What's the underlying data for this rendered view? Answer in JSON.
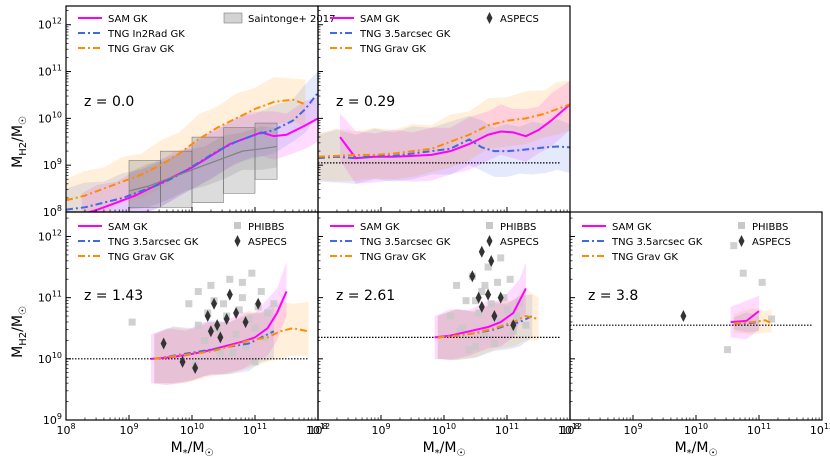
{
  "figure": {
    "ylabel": "M_H2/M_☉",
    "xlabel": "M_*/M_☉",
    "colors": {
      "sam": "#ff00ff",
      "tng_blue": "#4169e1",
      "tng_orange": "#ff8c00",
      "obs_line": "#808080",
      "phibbs": "#c8c8c8",
      "aspecs": "#333333"
    }
  },
  "chart_data": [
    {
      "type": "line",
      "panel": "z0",
      "title": "z = 0.0",
      "xlim": [
        8,
        12
      ],
      "ylim": [
        8,
        12.4
      ],
      "log_axes": true,
      "x_ticks": [
        "10^8",
        "10^9",
        "10^10",
        "10^11",
        "10^12"
      ],
      "y_ticks": [
        "10^8",
        "10^9",
        "10^10",
        "10^11",
        "10^12"
      ],
      "legend": [
        "SAM GK",
        "TNG In2Rad GK",
        "TNG Grav GK",
        "Saintonge+ 2017"
      ],
      "series": [
        {
          "name": "SAM GK",
          "style": "solid",
          "color": "#ff00ff",
          "band": 0.45,
          "x": [
            8.25,
            8.5,
            8.8,
            9.1,
            9.4,
            9.7,
            10.0,
            10.3,
            10.6,
            10.9,
            11.1,
            11.3,
            11.5,
            11.8,
            12.0
          ],
          "y": [
            7.95,
            8.05,
            8.2,
            8.35,
            8.55,
            8.75,
            8.95,
            9.2,
            9.45,
            9.6,
            9.7,
            9.62,
            9.65,
            9.85,
            10.0
          ]
        },
        {
          "name": "TNG In2Rad GK",
          "style": "dashdot",
          "color": "#4169e1",
          "band": 0.45,
          "x": [
            8.0,
            8.3,
            8.6,
            8.9,
            9.2,
            9.5,
            9.8,
            10.1,
            10.4,
            10.7,
            11.0,
            11.3,
            11.6,
            11.8,
            12.0
          ],
          "y": [
            8.05,
            8.1,
            8.2,
            8.3,
            8.45,
            8.6,
            8.8,
            9.05,
            9.3,
            9.5,
            9.65,
            9.75,
            9.95,
            10.2,
            10.55
          ]
        },
        {
          "name": "TNG Grav GK",
          "style": "dashdot",
          "color": "#ff8c00",
          "band": 0.45,
          "x": [
            8.0,
            8.3,
            8.6,
            8.9,
            9.2,
            9.5,
            9.8,
            10.1,
            10.4,
            10.7,
            11.0,
            11.3,
            11.6,
            11.8
          ],
          "y": [
            8.25,
            8.35,
            8.5,
            8.65,
            8.8,
            9.0,
            9.25,
            9.55,
            9.8,
            10.0,
            10.2,
            10.35,
            10.4,
            10.3
          ]
        },
        {
          "name": "Saintonge+ 2017",
          "style": "solid",
          "color": "#808080",
          "band": 0.4,
          "x": [
            9.0,
            9.3,
            9.6,
            9.9,
            10.2,
            10.5,
            10.8,
            11.1,
            11.35
          ],
          "y": [
            8.45,
            8.55,
            8.7,
            8.85,
            9.0,
            9.15,
            9.3,
            9.35,
            9.4
          ]
        }
      ],
      "boxes": [
        {
          "x0": 9.0,
          "x1": 9.5,
          "y0": 8.1,
          "y1": 9.1
        },
        {
          "x0": 9.5,
          "x1": 10.0,
          "y0": 8.1,
          "y1": 9.3
        },
        {
          "x0": 10.0,
          "x1": 10.5,
          "y0": 8.2,
          "y1": 9.6
        },
        {
          "x0": 10.5,
          "x1": 11.0,
          "y0": 8.4,
          "y1": 9.8
        },
        {
          "x0": 11.0,
          "x1": 11.35,
          "y0": 8.7,
          "y1": 9.9
        }
      ]
    },
    {
      "type": "line",
      "panel": "z029",
      "title": "z = 0.29",
      "xlim": [
        8,
        12
      ],
      "ylim": [
        8,
        12.4
      ],
      "log_axes": true,
      "legend": [
        "SAM GK",
        "TNG 3.5arcsec GK",
        "TNG Grav GK",
        "ASPECS"
      ],
      "limit_y": 9.05,
      "series": [
        {
          "name": "SAM GK",
          "style": "solid",
          "color": "#ff00ff",
          "band": 0.5,
          "x": [
            8.35,
            8.6,
            8.9,
            9.2,
            9.5,
            9.8,
            10.1,
            10.4,
            10.7,
            10.9,
            11.1,
            11.3,
            11.5,
            11.7,
            12.0
          ],
          "y": [
            9.6,
            9.15,
            9.18,
            9.18,
            9.2,
            9.22,
            9.3,
            9.45,
            9.65,
            9.72,
            9.7,
            9.62,
            9.75,
            9.95,
            10.3
          ]
        },
        {
          "name": "TNG 3.5arcsec GK",
          "style": "dashdot",
          "color": "#4169e1",
          "band": 0.5,
          "x": [
            8.0,
            8.3,
            8.6,
            8.9,
            9.2,
            9.5,
            9.8,
            10.1,
            10.4,
            10.6,
            10.8,
            11.0,
            11.2,
            11.4,
            11.6,
            11.8,
            12.0
          ],
          "y": [
            9.15,
            9.18,
            9.15,
            9.2,
            9.2,
            9.25,
            9.3,
            9.35,
            9.55,
            9.38,
            9.3,
            9.3,
            9.32,
            9.35,
            9.38,
            9.4,
            9.38
          ]
        },
        {
          "name": "TNG Grav GK",
          "style": "dashdot",
          "color": "#ff8c00",
          "band": 0.5,
          "x": [
            8.0,
            8.3,
            8.6,
            8.9,
            9.2,
            9.5,
            9.8,
            10.1,
            10.4,
            10.7,
            11.0,
            11.3,
            11.6,
            11.8,
            12.0
          ],
          "y": [
            9.18,
            9.2,
            9.22,
            9.22,
            9.25,
            9.3,
            9.35,
            9.5,
            9.65,
            9.85,
            9.95,
            10.0,
            10.1,
            10.2,
            10.3
          ]
        }
      ]
    },
    {
      "type": "line",
      "panel": "z143",
      "title": "z = 1.43",
      "xlim": [
        8,
        12
      ],
      "ylim": [
        9,
        12.4
      ],
      "log_axes": true,
      "x_ticks": [
        "10^8",
        "10^9",
        "10^10",
        "10^11",
        "10^12"
      ],
      "y_ticks": [
        "10^9",
        "10^10",
        "10^11",
        "10^12"
      ],
      "legend": [
        "SAM GK",
        "TNG 3.5arcsec GK",
        "TNG Grav GK",
        "PHIBBS",
        "ASPECS"
      ],
      "limit_y": 10.0,
      "series": [
        {
          "name": "SAM GK",
          "style": "solid",
          "color": "#ff00ff",
          "band": 0.4,
          "x": [
            9.35,
            9.6,
            9.9,
            10.2,
            10.5,
            10.8,
            11.0,
            11.2,
            11.35,
            11.5
          ],
          "y": [
            10.0,
            10.02,
            10.06,
            10.12,
            10.2,
            10.28,
            10.35,
            10.5,
            10.75,
            11.1
          ]
        },
        {
          "name": "TNG 3.5arcsec GK",
          "style": "dashdot",
          "color": "#4169e1",
          "band": 0.4,
          "x": [
            9.4,
            9.7,
            10.0,
            10.3,
            10.6,
            10.9,
            11.1,
            11.3
          ],
          "y": [
            10.0,
            10.05,
            10.1,
            10.15,
            10.2,
            10.25,
            10.35,
            10.45
          ]
        },
        {
          "name": "TNG Grav GK",
          "style": "dashdot",
          "color": "#ff8c00",
          "band": 0.4,
          "x": [
            9.4,
            9.7,
            10.0,
            10.3,
            10.6,
            10.9,
            11.2,
            11.4,
            11.6,
            11.85
          ],
          "y": [
            10.0,
            10.04,
            10.08,
            10.12,
            10.2,
            10.3,
            10.35,
            10.45,
            10.5,
            10.45
          ]
        }
      ],
      "phibbs": [
        [
          9.05,
          10.6
        ],
        [
          9.95,
          10.9
        ],
        [
          10.1,
          11.1
        ],
        [
          10.2,
          10.3
        ],
        [
          10.3,
          11.2
        ],
        [
          10.4,
          10.5
        ],
        [
          10.5,
          10.9
        ],
        [
          10.55,
          10.7
        ],
        [
          10.6,
          11.3
        ],
        [
          10.7,
          10.4
        ],
        [
          10.75,
          10.8
        ],
        [
          10.8,
          11.0
        ],
        [
          10.85,
          10.2
        ],
        [
          10.9,
          10.65
        ],
        [
          10.95,
          11.4
        ],
        [
          11.0,
          10.5
        ],
        [
          11.05,
          10.85
        ],
        [
          11.1,
          11.1
        ],
        [
          11.15,
          10.35
        ],
        [
          11.2,
          10.75
        ],
        [
          10.45,
          10.1
        ],
        [
          10.65,
          10.1
        ],
        [
          10.35,
          10.95
        ],
        [
          11.0,
          9.95
        ],
        [
          10.1,
          10.55
        ],
        [
          10.25,
          10.75
        ],
        [
          10.8,
          11.25
        ],
        [
          11.3,
          10.9
        ],
        [
          10.05,
          9.9
        ]
      ],
      "aspecs": [
        [
          9.55,
          10.25
        ],
        [
          9.85,
          9.95
        ],
        [
          10.05,
          9.85
        ],
        [
          10.25,
          10.7
        ],
        [
          10.35,
          10.9
        ],
        [
          10.4,
          10.55
        ],
        [
          10.45,
          10.35
        ],
        [
          10.55,
          10.65
        ],
        [
          10.7,
          10.75
        ],
        [
          10.85,
          10.6
        ],
        [
          11.05,
          10.9
        ],
        [
          10.6,
          11.05
        ],
        [
          10.3,
          10.45
        ]
      ]
    },
    {
      "type": "line",
      "panel": "z261",
      "title": "z = 2.61",
      "xlim": [
        8,
        12
      ],
      "ylim": [
        9,
        12.4
      ],
      "log_axes": true,
      "x_ticks": [
        "10^8",
        "10^9",
        "10^10",
        "10^11",
        "10^12"
      ],
      "legend": [
        "SAM GK",
        "TNG 3.5arcsec GK",
        "TNG Grav GK",
        "PHIBBS",
        "ASPECS"
      ],
      "limit_y": 10.35,
      "series": [
        {
          "name": "SAM GK",
          "style": "solid",
          "color": "#ff00ff",
          "band": 0.35,
          "x": [
            9.85,
            10.1,
            10.4,
            10.7,
            10.9,
            11.1,
            11.2,
            11.3
          ],
          "y": [
            10.35,
            10.38,
            10.45,
            10.52,
            10.6,
            10.75,
            10.95,
            11.15
          ]
        },
        {
          "name": "TNG 3.5arcsec GK",
          "style": "dashdot",
          "color": "#4169e1",
          "band": 0.35,
          "x": [
            9.9,
            10.2,
            10.5,
            10.8,
            11.0,
            11.2,
            11.4
          ],
          "y": [
            10.35,
            10.38,
            10.42,
            10.48,
            10.55,
            10.6,
            10.7
          ]
        },
        {
          "name": "TNG Grav GK",
          "style": "dashdot",
          "color": "#ff8c00",
          "band": 0.35,
          "x": [
            9.9,
            10.2,
            10.5,
            10.8,
            11.1,
            11.3,
            11.5
          ],
          "y": [
            10.35,
            10.38,
            10.42,
            10.5,
            10.6,
            10.7,
            10.65
          ]
        }
      ],
      "phibbs": [
        [
          10.1,
          10.7
        ],
        [
          10.2,
          11.2
        ],
        [
          10.3,
          10.5
        ],
        [
          10.35,
          10.95
        ],
        [
          10.45,
          11.35
        ],
        [
          10.5,
          10.2
        ],
        [
          10.55,
          10.75
        ],
        [
          10.6,
          11.1
        ],
        [
          10.65,
          10.4
        ],
        [
          10.7,
          11.5
        ],
        [
          10.75,
          10.9
        ],
        [
          10.8,
          10.25
        ],
        [
          10.85,
          11.25
        ],
        [
          10.9,
          10.6
        ],
        [
          10.95,
          11.0
        ],
        [
          11.0,
          10.8
        ],
        [
          11.05,
          11.3
        ],
        [
          11.1,
          10.45
        ],
        [
          11.15,
          10.7
        ],
        [
          11.2,
          10.9
        ],
        [
          10.4,
          10.15
        ],
        [
          10.25,
          10.45
        ],
        [
          10.9,
          11.65
        ],
        [
          10.65,
          11.2
        ],
        [
          10.5,
          10.95
        ],
        [
          11.3,
          10.55
        ]
      ],
      "aspecs": [
        [
          10.6,
          11.75
        ],
        [
          10.75,
          11.6
        ],
        [
          10.45,
          11.35
        ],
        [
          10.55,
          11.0
        ],
        [
          10.7,
          11.05
        ],
        [
          10.8,
          10.7
        ],
        [
          10.9,
          11.0
        ],
        [
          11.1,
          10.55
        ],
        [
          10.6,
          10.85
        ]
      ]
    },
    {
      "type": "line",
      "panel": "z38",
      "title": "z = 3.8",
      "xlim": [
        8,
        12
      ],
      "ylim": [
        9,
        12.4
      ],
      "log_axes": true,
      "x_ticks": [
        "10^8",
        "10^9",
        "10^10",
        "10^11",
        "10^12"
      ],
      "legend": [
        "SAM GK",
        "TNG 3.5arcsec GK",
        "TNG Grav GK",
        "PHIBBS",
        "ASPECS"
      ],
      "limit_y": 10.55,
      "series": [
        {
          "name": "SAM GK",
          "style": "solid",
          "color": "#ff00ff",
          "band": 0.25,
          "x": [
            10.55,
            10.8,
            11.0
          ],
          "y": [
            10.6,
            10.62,
            10.78
          ]
        },
        {
          "name": "TNG 3.5arcsec GK",
          "style": "dashdot",
          "color": "#4169e1",
          "band": 0.1,
          "x": [
            10.6,
            10.8,
            11.0
          ],
          "y": [
            10.58,
            10.58,
            10.6
          ]
        },
        {
          "name": "TNG Grav GK",
          "style": "dashdot",
          "color": "#ff8c00",
          "band": 0.15,
          "x": [
            10.6,
            10.9,
            11.1,
            11.2
          ],
          "y": [
            10.58,
            10.6,
            10.63,
            10.58
          ]
        }
      ],
      "phibbs": [
        [
          10.6,
          11.85
        ],
        [
          10.5,
          10.15
        ],
        [
          10.75,
          11.4
        ],
        [
          11.05,
          11.25
        ],
        [
          11.2,
          10.65
        ]
      ],
      "aspecs": [
        [
          9.8,
          10.7
        ]
      ]
    }
  ]
}
